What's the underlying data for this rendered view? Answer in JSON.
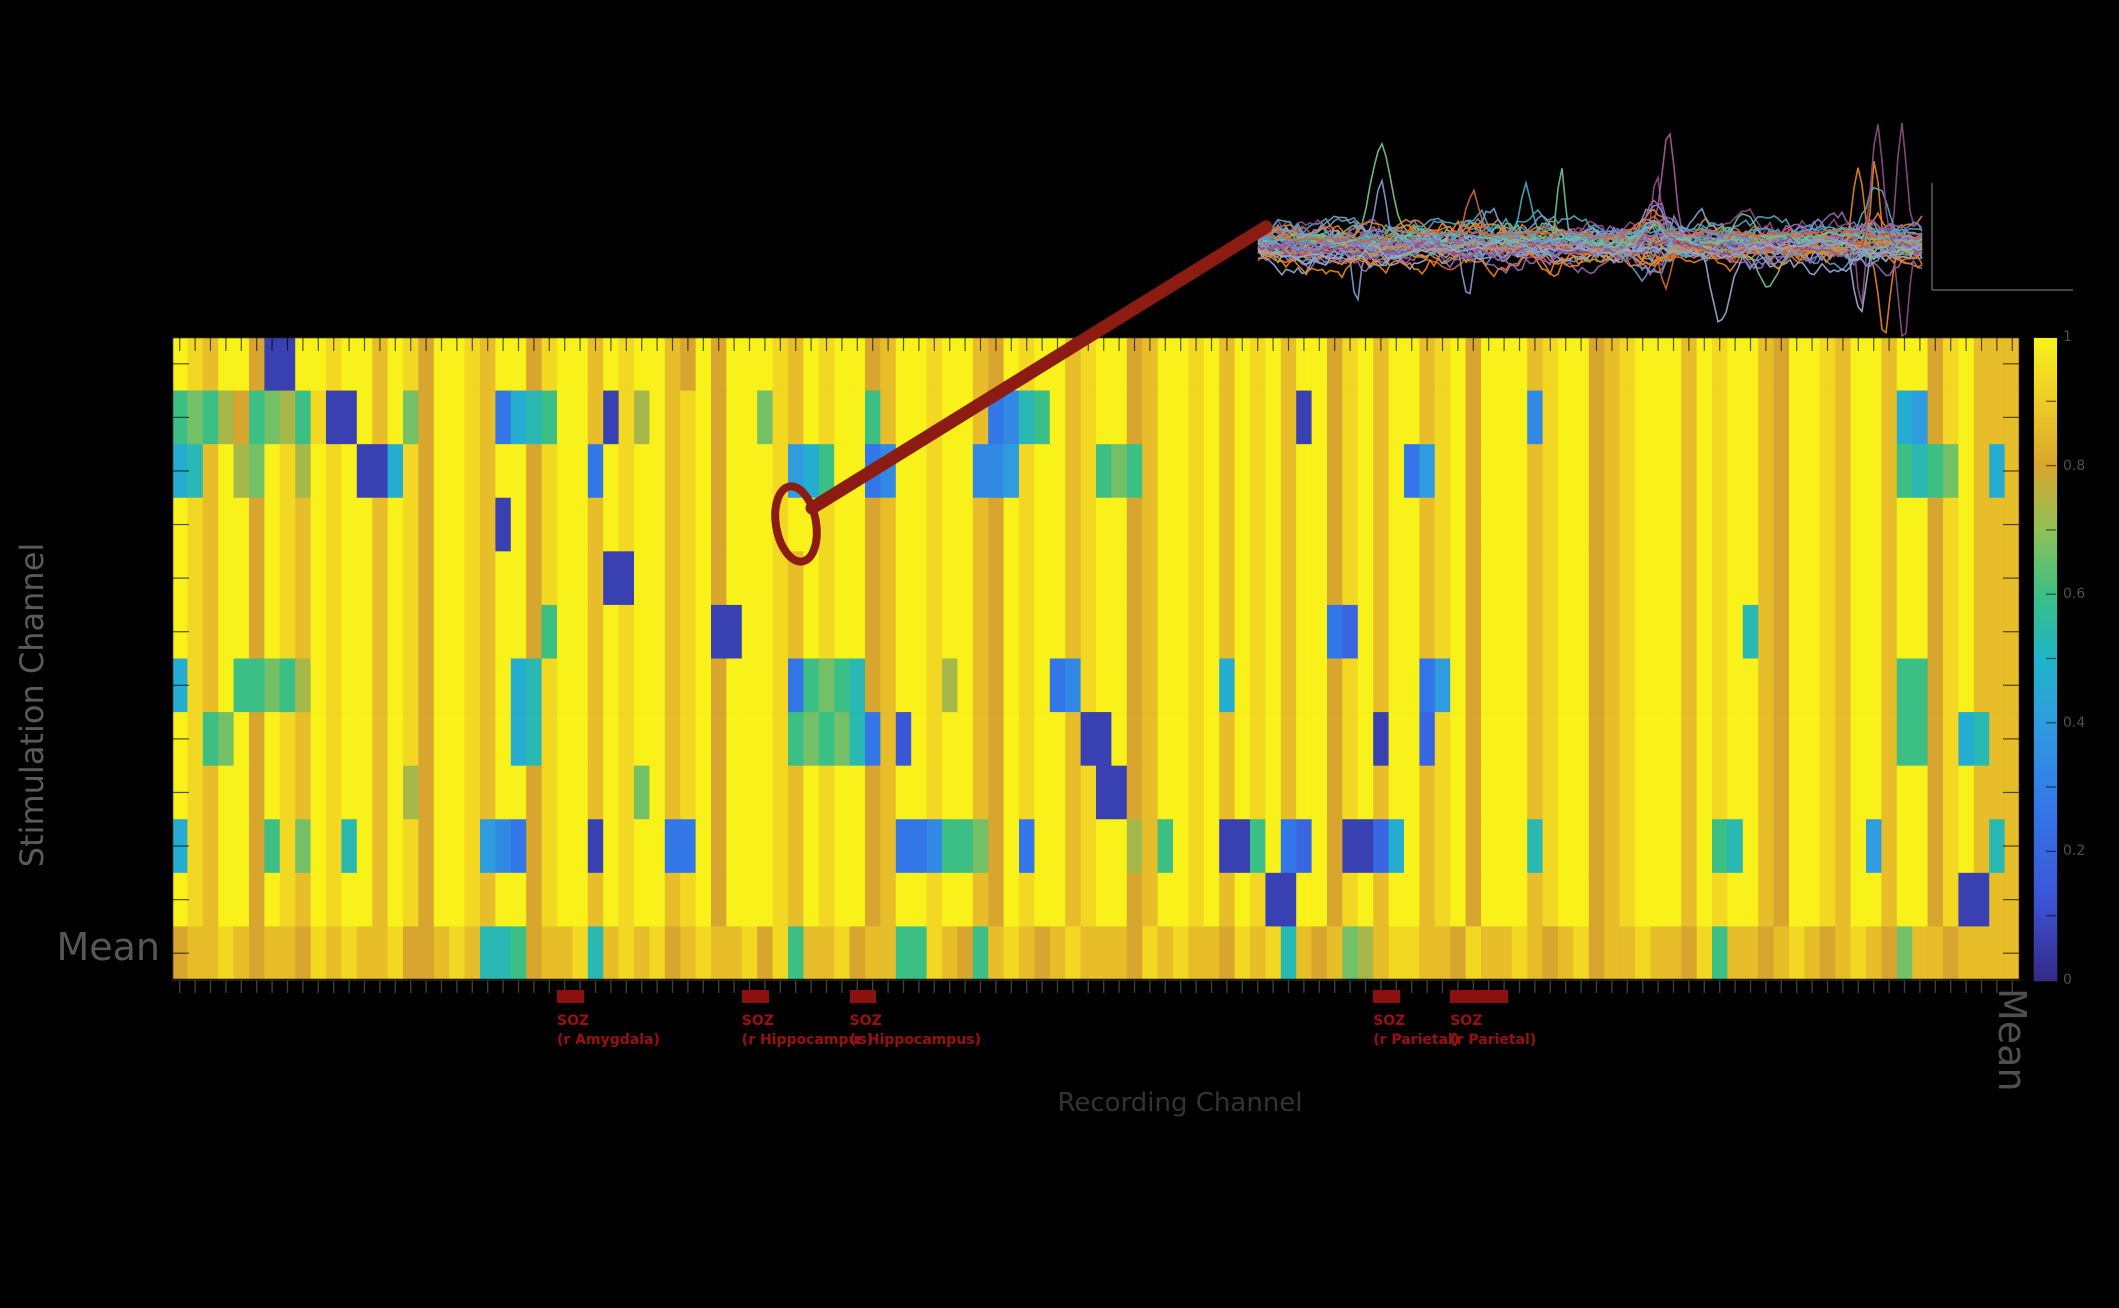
{
  "figure": {
    "bg": "#000000"
  },
  "axes": {
    "ylabel": "Stimulation Channel",
    "xlabel": "Recording Channel",
    "row_mean_label": "Mean",
    "col_mean_label": "Mean"
  },
  "soz": {
    "text_color": "#9a1010",
    "marker_color": "#8b1111",
    "rows": [
      {
        "row": 4,
        "lines": [
          "SOZ",
          "(r Amygdala)"
        ]
      },
      {
        "row": 7,
        "lines": [
          "SOZ",
          "(r Parietal)"
        ]
      },
      {
        "row": 8,
        "lines": [
          "SOZ",
          "(r Parietal)"
        ]
      }
    ],
    "cols": [
      {
        "col_start": 25,
        "col_end": 26,
        "lines": [
          "SOZ",
          "(r Amygdala)"
        ]
      },
      {
        "col_start": 37,
        "col_end": 38,
        "lines": [
          "SOZ",
          "(r Hippocampus)"
        ]
      },
      {
        "col_start": 44,
        "col_end": 45,
        "lines": [
          "SOZ",
          "(r Hippocampus)"
        ]
      },
      {
        "col_start": 78,
        "col_end": 79,
        "lines": [
          "SOZ",
          "(r Parietal)"
        ]
      },
      {
        "col_start": 83,
        "col_end": 86,
        "lines": [
          "SOZ",
          "(r Parietal)"
        ]
      }
    ]
  },
  "colorbar": {
    "tick_labels": [
      "1",
      "0.8",
      "0.6",
      "0.4",
      "0.2",
      "0"
    ],
    "range": [
      0,
      1
    ],
    "stops": [
      [
        0,
        "#352a87"
      ],
      [
        0.13,
        "#3c55d8"
      ],
      [
        0.27,
        "#3377e8"
      ],
      [
        0.4,
        "#2f9ce0"
      ],
      [
        0.5,
        "#1fb4c9"
      ],
      [
        0.6,
        "#3cbf85"
      ],
      [
        0.7,
        "#8ec158"
      ],
      [
        0.8,
        "#d8a52e"
      ],
      [
        0.9,
        "#eecb28"
      ],
      [
        1,
        "#f9f21a"
      ]
    ]
  },
  "chart_data": {
    "type": "heatmap",
    "rows": 12,
    "cols": 120,
    "row_semantics": "stimulation channels; rows 4,7,8 are SOZ; last row is Mean",
    "col_semantics": "recording channels; marked col groups are SOZ; last column is Mean",
    "encoding": "each character is a hex digit 0-15; cell value = digit/15 on the 0-1 colorbar scale",
    "vlim": [
      0,
      1
    ],
    "values": [
      "fedffc11ffeffdfecffedffceffdfeffdcfcfffedfeffcdffeffdcfeffdeffcdffefdfefdffcefdffdefcfffdeffcdefffdfeffdcffedffdffcefddd",
      "9a9bc9ab9e11fdfacffed4789ffd1ebfdefcffaedfeff9dffeffd4589fdeffcdffefdfefd1fcefdffdefcfff5effcdefffdfeffdcffedffd76cefddd",
      "78dfbafebfef117ecffedffceff4feffdefcfffe679ff45ffeff556effde9a9dffefdfefdffcefdf46efcfffdeffcdefffdfeffdcffedffd989afd7d",
      "fedffcfedfeffdfecffed1fceffdfeffdefcfffeffeffcdffeffdcfeffdeffcdffefdfefdffcefdffdefcfffdeffcdefffdfeffdcffedffdffcefddd",
      "fedffcfedfeffdfecffedffceffd11ffdefcfffedfeffcdffeffdcfeffdeffcdffefdfefdffcefdffdefcfffdeffcdefffdfeffdcffedffdffcefddd",
      "fedffcfedfeffdfecffedffc9ffdfeffdef11ffedfeffcdffeffdcfeffdeffcdffefdfefdff43fdffdefcfffdeffcdefffdfef8dcffedffdffcefddd",
      "7edf99a9bfeffdfecffedf78effdfeffdefcfffe49a98cdffebfdcfef45effcdffef7fefdffcefdff46fcfffdeffcdefffdfeffdcffedffd99cefddd",
      "fe9afcfedfeffdfecffedf78effdfeffdefcfffe9a9a84d2feffdcfeffd11fcdffefdfefdffcef1ff3efcfffdeffcdefffdfeffdcffedffd99ce78dd",
      "fedffcfedfeffdfbcffedffceffdfeafdefcfffedfeffcdffeffdcfeffde11cdffefdfefdffcefdffdefcfffdeffcdefffdfeffdcffedffdffcefddd",
      "7edffc9eafe8fdfecffe654ceff1feff44fcfffedfeffcd44599acf4ffdeffbd9fef119f43fc1137fdefcfff8effcdefffdf98fdcffedf6dffcefd8d",
      "fedffcfedfeffdfecffedffceffdfeffdefcfffedfeffcdffeffdcfeffdeffcdffefdfe11ffcefdffdefcfffdeffcdefffdfeffdcffedffdffce11dd",
      "cddedcddcededdeccded889cdde8dedecdeddece9ddecdd99edc9dedcdedddcededdcede8dcdabdeeddceddedcdecddeddce9ddcdedcdedcaddcdddd"
    ]
  },
  "inset": {
    "type": "line",
    "description": "overlaid evoked-response voltage traces for the circled stimulation-recording pair",
    "n_traces": 46,
    "seed": 11,
    "palette": [
      "#e8831f",
      "#9b64b4",
      "#6d90c5",
      "#75c78a",
      "#e8831f",
      "#4ba9bf",
      "#8e4d87",
      "#96aad3",
      "#d0653a",
      "#7f9bd0",
      "#67bf9a",
      "#a85a9a"
    ],
    "scalebar_color": "#474747"
  },
  "annotation": {
    "color": "#8c1b12"
  }
}
